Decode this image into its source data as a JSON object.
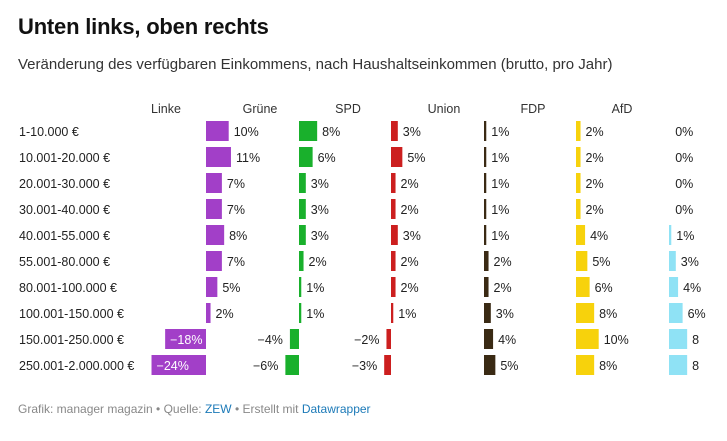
{
  "title": "Unten links, oben rechts",
  "subtitle": "Veränderung des verfügbaren Einkommens, nach Haushaltseinkommen (brutto, pro Jahr)",
  "footer": {
    "prefix": "Grafik: manager magazin • Quelle: ",
    "source": "ZEW",
    "middle": " • Erstellt mit ",
    "tool": "Datawrapper"
  },
  "colors": {
    "Linke": "#a23fc8",
    "Grüne": "#19b02c",
    "SPD": "#cc1f1f",
    "Union": "#3a2a14",
    "FDP": "#f7d20c",
    "AfD": "#8fe2f5"
  },
  "chart_data": {
    "type": "bar",
    "categories": [
      "1-10.000 €",
      "10.001-20.000 €",
      "20.001-30.000 €",
      "30.001-40.000 €",
      "40.001-55.000 €",
      "55.001-80.000 €",
      "80.001-100.000 €",
      "100.001-150.000 €",
      "150.001-250.000 €",
      "250.001-2.000.000 €"
    ],
    "series": [
      {
        "name": "Linke",
        "values": [
          10,
          11,
          7,
          7,
          8,
          7,
          5,
          2,
          -18,
          -24
        ],
        "labels": [
          "10%",
          "11%",
          "7%",
          "7%",
          "8%",
          "7%",
          "5%",
          "2%",
          "−18%",
          "−24%"
        ]
      },
      {
        "name": "Grüne",
        "values": [
          8,
          6,
          3,
          3,
          3,
          2,
          1,
          1,
          -4,
          -6
        ],
        "labels": [
          "8%",
          "6%",
          "3%",
          "3%",
          "3%",
          "2%",
          "1%",
          "1%",
          "−4%",
          "−6%"
        ]
      },
      {
        "name": "SPD",
        "values": [
          3,
          5,
          2,
          2,
          3,
          2,
          2,
          1,
          -2,
          -3
        ],
        "labels": [
          "3%",
          "5%",
          "2%",
          "2%",
          "3%",
          "2%",
          "2%",
          "1%",
          "−2%",
          "−3%"
        ]
      },
      {
        "name": "Union",
        "values": [
          1,
          1,
          1,
          1,
          1,
          2,
          2,
          3,
          4,
          5
        ],
        "labels": [
          "1%",
          "1%",
          "1%",
          "1%",
          "1%",
          "2%",
          "2%",
          "3%",
          "4%",
          "5%"
        ]
      },
      {
        "name": "FDP",
        "values": [
          2,
          2,
          2,
          2,
          4,
          5,
          6,
          8,
          10,
          8
        ],
        "labels": [
          "2%",
          "2%",
          "2%",
          "2%",
          "4%",
          "5%",
          "6%",
          "8%",
          "10%",
          "8%"
        ]
      },
      {
        "name": "AfD",
        "values": [
          0,
          0,
          0,
          0,
          1,
          3,
          4,
          6,
          8,
          8
        ],
        "labels": [
          "0%",
          "0%",
          "0%",
          "0%",
          "1%",
          "3%",
          "4%",
          "6%",
          "8",
          "8"
        ]
      }
    ]
  }
}
